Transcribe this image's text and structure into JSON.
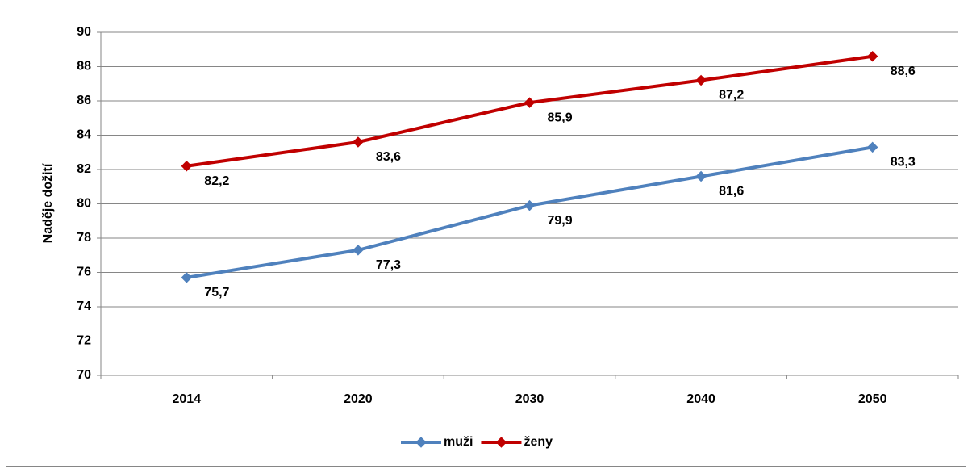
{
  "chart_data": {
    "type": "line",
    "y_label": "Naděje dožití",
    "categories": [
      "2014",
      "2020",
      "2030",
      "2040",
      "2050"
    ],
    "series": [
      {
        "name": "muži",
        "color": "#4f81bd",
        "values": [
          75.7,
          77.3,
          79.9,
          81.6,
          83.3
        ],
        "value_labels": [
          "75,7",
          "77,3",
          "79,9",
          "81,6",
          "83,3"
        ]
      },
      {
        "name": "ženy",
        "color": "#c00000",
        "values": [
          82.2,
          83.6,
          85.9,
          87.2,
          88.6
        ],
        "value_labels": [
          "82,2",
          "83,6",
          "85,9",
          "87,2",
          "88,6"
        ]
      }
    ],
    "ylim": [
      70,
      90
    ],
    "yticks": [
      70,
      72,
      74,
      76,
      78,
      80,
      82,
      84,
      86,
      88,
      90
    ],
    "grid": true,
    "legend": "bottom"
  }
}
